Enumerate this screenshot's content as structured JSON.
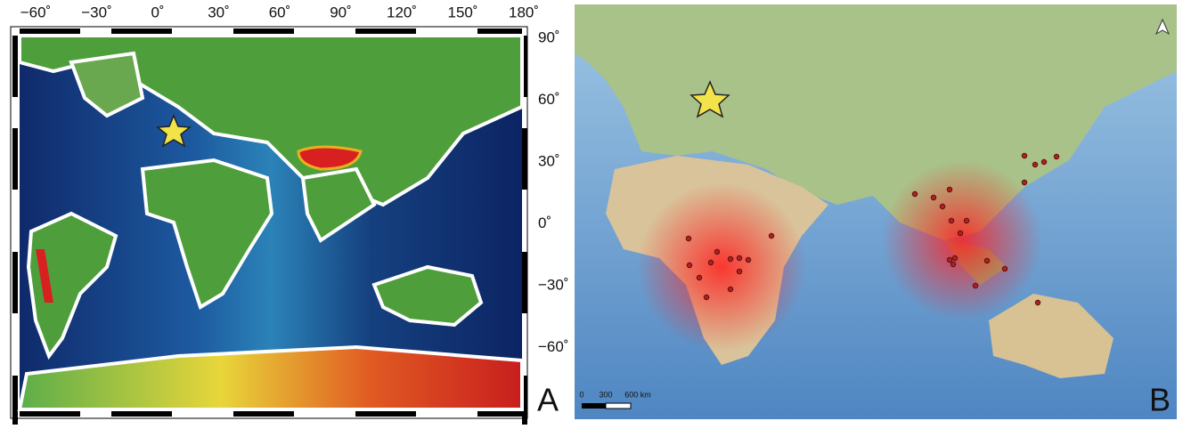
{
  "panel_a": {
    "lon_labels": [
      "−60˚",
      "−30˚",
      "0˚",
      "30˚",
      "60˚",
      "90˚",
      "120˚",
      "150˚",
      "180˚"
    ],
    "lat_labels": [
      "90˚",
      "60˚",
      "30˚",
      "0˚",
      "−30˚",
      "−60˚"
    ],
    "letter": "A"
  },
  "panel_b": {
    "scale_labels": [
      "0",
      "300",
      "600 km"
    ],
    "letter": "B"
  }
}
